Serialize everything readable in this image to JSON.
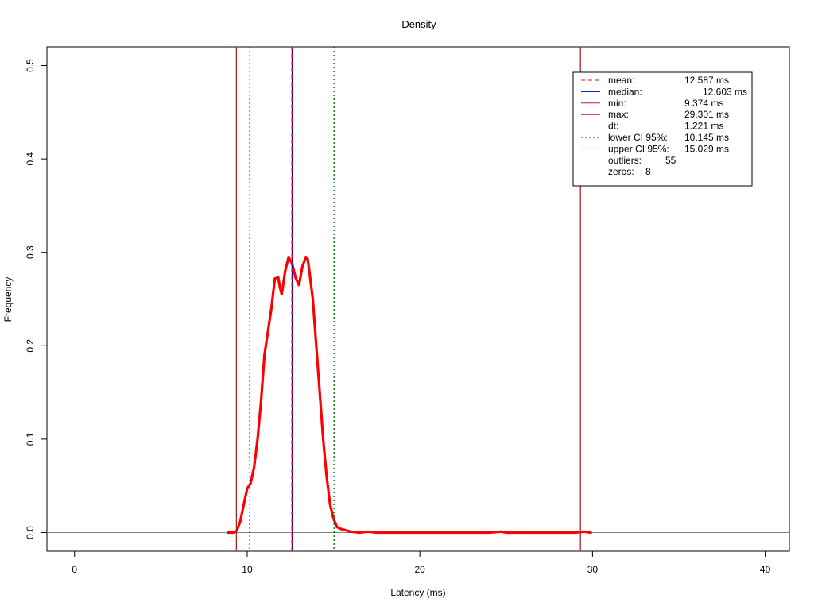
{
  "chart_data": {
    "type": "line",
    "title": "Density",
    "xlabel": "Latency (ms)",
    "ylabel": "Frequency",
    "xlim": [
      -1.6,
      41.4
    ],
    "ylim": [
      -0.02,
      0.52
    ],
    "x_ticks": [
      0,
      10,
      20,
      30,
      40
    ],
    "x_tick_labels": [
      "0",
      "10",
      "20",
      "30",
      "40"
    ],
    "y_ticks": [
      0.0,
      0.1,
      0.2,
      0.3,
      0.4,
      0.5
    ],
    "y_tick_labels": [
      "0.0",
      "0.1",
      "0.2",
      "0.3",
      "0.4",
      "0.5"
    ],
    "grid": false,
    "legend_position": "top-right",
    "colors": {
      "density": "#ff0000",
      "mean": "#ff0000",
      "median": "#0000cd",
      "minmax": "#b22222",
      "ci": "#006400",
      "baseline": "#808080",
      "axis": "#000000"
    },
    "series": [
      {
        "color": "#ff0000",
        "x": [
          8.9,
          9.2,
          9.4,
          9.6,
          9.8,
          10.0,
          10.2,
          10.4,
          10.6,
          10.8,
          11.0,
          11.2,
          11.4,
          11.6,
          11.8,
          11.9,
          12.0,
          12.2,
          12.4,
          12.6,
          12.8,
          13.0,
          13.2,
          13.4,
          13.5,
          13.6,
          13.8,
          14.0,
          14.2,
          14.4,
          14.6,
          14.8,
          15.0,
          15.2,
          15.4,
          15.6,
          15.8,
          16.0,
          16.5,
          17.0,
          17.5,
          18.0,
          19.0,
          20.0,
          21.0,
          22.0,
          23.0,
          24.0,
          24.7,
          25.0,
          26.0,
          27.0,
          28.0,
          29.0,
          29.5,
          29.9
        ],
        "y": [
          0.0,
          0.0,
          0.002,
          0.012,
          0.03,
          0.047,
          0.053,
          0.07,
          0.1,
          0.14,
          0.19,
          0.215,
          0.24,
          0.272,
          0.273,
          0.262,
          0.255,
          0.28,
          0.295,
          0.288,
          0.273,
          0.265,
          0.285,
          0.295,
          0.293,
          0.28,
          0.25,
          0.2,
          0.15,
          0.1,
          0.06,
          0.03,
          0.015,
          0.006,
          0.004,
          0.003,
          0.002,
          0.001,
          0.0,
          0.001,
          0.0,
          0.0,
          0.0,
          0.0,
          0.0,
          0.0,
          0.0,
          0.0,
          0.001,
          0.0,
          0.0,
          0.0,
          0.0,
          0.0,
          0.001,
          0.0
        ]
      }
    ],
    "vlines": [
      {
        "key": "min",
        "x": 9.374,
        "color": "#b22222",
        "dash": "solid"
      },
      {
        "key": "max",
        "x": 29.301,
        "color": "#b22222",
        "dash": "solid"
      },
      {
        "key": "lower_ci",
        "x": 10.145,
        "color": "#006400",
        "dash": "dotted"
      },
      {
        "key": "upper_ci",
        "x": 15.029,
        "color": "#006400",
        "dash": "dotted"
      },
      {
        "key": "median",
        "x": 12.603,
        "color": "#0000cd",
        "dash": "solid"
      },
      {
        "key": "mean",
        "x": 12.587,
        "color": "#ff0000",
        "dash": "dashed"
      }
    ],
    "legend": {
      "entries": [
        {
          "label": "mean:",
          "value": "12.587 ms",
          "color": "#ff0000",
          "dash": "dashed"
        },
        {
          "label": "median:",
          "value": "12.603 ms",
          "color": "#0000cd",
          "dash": "solid"
        },
        {
          "label": "min:",
          "value": "9.374 ms",
          "color": "#b22222",
          "dash": "solid"
        },
        {
          "label": "max:",
          "value": "29.301 ms",
          "color": "#b22222",
          "dash": "solid"
        },
        {
          "label": "dt:",
          "value": "1.221 ms",
          "color": "",
          "dash": "none"
        },
        {
          "label": "lower CI 95%:",
          "value": "10.145 ms",
          "color": "#006400",
          "dash": "dotted"
        },
        {
          "label": "upper CI 95%:",
          "value": "15.029 ms",
          "color": "#006400",
          "dash": "dotted"
        },
        {
          "label": "outliers:",
          "value": "55",
          "color": "",
          "dash": "none"
        },
        {
          "label": "zeros:",
          "value": "8",
          "color": "",
          "dash": "none"
        }
      ]
    }
  }
}
